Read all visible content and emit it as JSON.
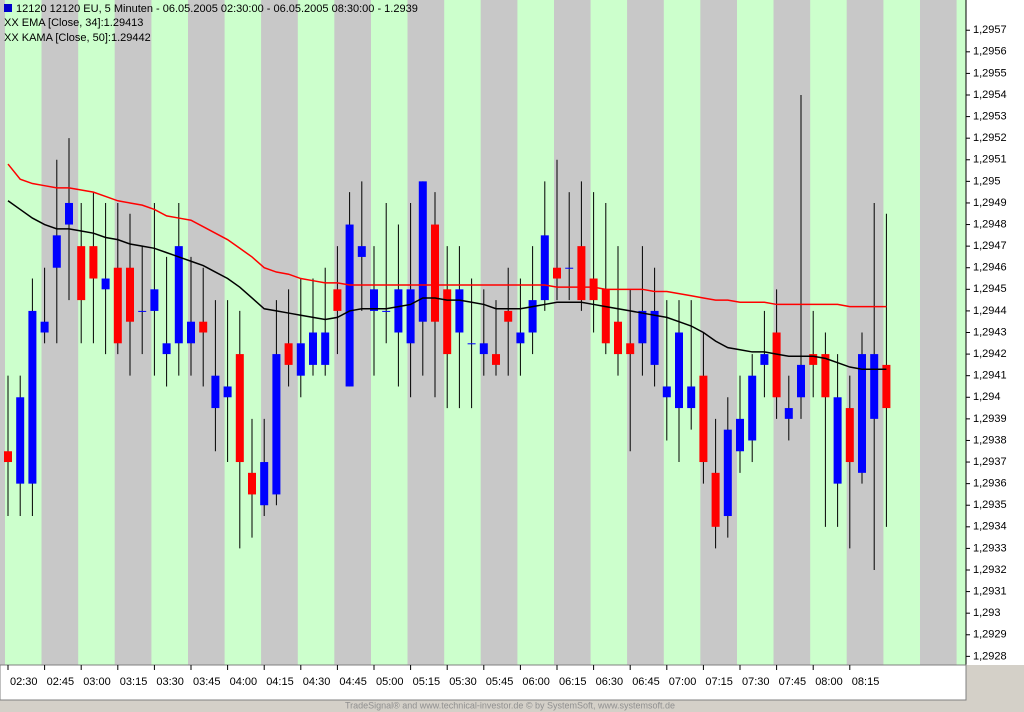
{
  "chart_data": {
    "type": "candlestick",
    "title": "12120  12120  EU, 5 Minuten - 06.05.2005 02:30:00 - 06.05.2005 08:30:00 - 1.2939",
    "footer": "TradeSignal® and www.technical-investor.de © by SystemSoft, www.systemsoft.de",
    "up_color": "#0000ff",
    "down_color": "#ff0000",
    "categories": [
      "02:30",
      null,
      null,
      "02:45",
      null,
      null,
      "03:00",
      null,
      null,
      "03:15",
      null,
      null,
      "03:30",
      null,
      null,
      "03:45",
      null,
      null,
      "04:00",
      null,
      null,
      "04:15",
      null,
      null,
      "04:30",
      null,
      null,
      "04:45",
      null,
      null,
      "05:00",
      null,
      null,
      "05:15",
      null,
      null,
      "05:30",
      null,
      null,
      "05:45",
      null,
      null,
      "06:00",
      null,
      null,
      "06:15",
      null,
      null,
      "06:30",
      null,
      null,
      "06:45",
      null,
      null,
      "07:00",
      null,
      null,
      "07:15",
      null,
      null,
      "07:30",
      null,
      null,
      "07:45",
      null,
      null,
      "08:00",
      null,
      null,
      "08:15",
      null,
      null,
      null
    ],
    "open": [
      1.29375,
      1.2936,
      1.2936,
      1.2943,
      1.2946,
      1.2948,
      1.2947,
      1.2947,
      1.2945,
      1.2946,
      1.2946,
      1.2944,
      1.2944,
      1.2942,
      1.29425,
      1.29425,
      1.29435,
      1.29395,
      1.294,
      1.2942,
      1.29365,
      1.2935,
      1.29355,
      1.29425,
      1.2941,
      1.29415,
      1.29415,
      1.2945,
      1.29405,
      1.29465,
      1.2944,
      1.2944,
      1.2943,
      1.29425,
      1.29435,
      1.2948,
      1.2945,
      1.2943,
      1.29425,
      1.2942,
      1.2942,
      1.2944,
      1.29425,
      1.2943,
      1.29445,
      1.2946,
      1.2946,
      1.2947,
      1.29455,
      1.2945,
      1.29435,
      1.29425,
      1.29425,
      1.29415,
      1.294,
      1.29395,
      1.29395,
      1.2941,
      1.29365,
      1.29345,
      1.29375,
      1.2938,
      1.29415,
      1.2943,
      1.2939,
      1.294,
      1.2942,
      1.2942,
      1.2936,
      1.29395,
      1.29365,
      1.2939,
      1.29415
    ],
    "high": [
      1.2941,
      1.2941,
      1.29455,
      1.2946,
      1.2951,
      1.2952,
      1.2949,
      1.29495,
      1.2949,
      1.2949,
      1.29485,
      1.2947,
      1.2949,
      1.29465,
      1.2949,
      1.29465,
      1.2946,
      1.29445,
      1.29445,
      1.2944,
      1.2939,
      1.2939,
      1.29445,
      1.2945,
      1.29455,
      1.29455,
      1.2946,
      1.2947,
      1.29495,
      1.295,
      1.2947,
      1.2949,
      1.2948,
      1.2949,
      1.295,
      1.29495,
      1.2947,
      1.2947,
      1.29455,
      1.2945,
      1.29445,
      1.2946,
      1.29455,
      1.2947,
      1.295,
      1.2951,
      1.29495,
      1.295,
      1.29495,
      1.2949,
      1.2947,
      1.2945,
      1.2947,
      1.2946,
      1.29445,
      1.29445,
      1.29445,
      1.2943,
      1.2939,
      1.294,
      1.2941,
      1.2942,
      1.2944,
      1.2945,
      1.2941,
      1.2954,
      1.2944,
      1.2943,
      1.2942,
      1.2941,
      1.2943,
      1.2949,
      1.29485
    ],
    "low": [
      1.29345,
      1.29345,
      1.29345,
      1.29425,
      1.29425,
      1.29445,
      1.29425,
      1.29425,
      1.2942,
      1.2942,
      1.2941,
      1.2942,
      1.2941,
      1.29405,
      1.2941,
      1.2941,
      1.29405,
      1.29375,
      1.2937,
      1.2933,
      1.29335,
      1.29345,
      1.2935,
      1.29405,
      1.294,
      1.2941,
      1.2941,
      1.2942,
      1.29405,
      1.2944,
      1.2941,
      1.29425,
      1.29405,
      1.294,
      1.2941,
      1.294,
      1.29395,
      1.29395,
      1.29395,
      1.2941,
      1.2941,
      1.2941,
      1.2941,
      1.2942,
      1.2944,
      1.29445,
      1.29445,
      1.2944,
      1.2943,
      1.2942,
      1.2941,
      1.29375,
      1.2941,
      1.29405,
      1.2938,
      1.2937,
      1.29385,
      1.2936,
      1.2933,
      1.29335,
      1.29365,
      1.2937,
      1.294,
      1.2939,
      1.2938,
      1.2939,
      1.294,
      1.2934,
      1.2934,
      1.2933,
      1.2936,
      1.2932,
      1.2934
    ],
    "close": [
      1.2937,
      1.294,
      1.2944,
      1.29435,
      1.29475,
      1.2949,
      1.29445,
      1.29455,
      1.29455,
      1.29425,
      1.29435,
      1.2944,
      1.2945,
      1.29425,
      1.2947,
      1.29435,
      1.2943,
      1.2941,
      1.29405,
      1.2937,
      1.29355,
      1.2937,
      1.2942,
      1.29415,
      1.29425,
      1.2943,
      1.2943,
      1.2944,
      1.2948,
      1.2947,
      1.2945,
      1.2944,
      1.2945,
      1.2945,
      1.295,
      1.29435,
      1.2942,
      1.2945,
      1.29425,
      1.29425,
      1.29415,
      1.29435,
      1.2943,
      1.29445,
      1.29475,
      1.29455,
      1.2946,
      1.29445,
      1.29445,
      1.29425,
      1.2942,
      1.2942,
      1.2944,
      1.2944,
      1.29405,
      1.2943,
      1.29405,
      1.2937,
      1.2934,
      1.29385,
      1.2939,
      1.2941,
      1.2942,
      1.294,
      1.29395,
      1.29415,
      1.29415,
      1.294,
      1.294,
      1.2937,
      1.2942,
      1.2942,
      1.29395
    ],
    "series": [
      {
        "name": "XX EMA [Close, 34]:1.29413",
        "color": "#000000",
        "values": [
          1.29491,
          1.29487,
          1.29483,
          1.2948,
          1.29478,
          1.29478,
          1.29477,
          1.29476,
          1.29474,
          1.29473,
          1.29471,
          1.2947,
          1.29469,
          1.29467,
          1.29465,
          1.29463,
          1.29461,
          1.29458,
          1.29455,
          1.29451,
          1.29446,
          1.29441,
          1.2944,
          1.29439,
          1.29438,
          1.29437,
          1.29436,
          1.29437,
          1.2944,
          1.29441,
          1.29441,
          1.29441,
          1.29442,
          1.29443,
          1.29446,
          1.29446,
          1.29445,
          1.29445,
          1.29444,
          1.29443,
          1.29441,
          1.29441,
          1.29441,
          1.29442,
          1.29443,
          1.29444,
          1.29444,
          1.29444,
          1.29443,
          1.29442,
          1.29441,
          1.2944,
          1.29439,
          1.29438,
          1.29437,
          1.29435,
          1.29433,
          1.2943,
          1.29426,
          1.29423,
          1.29422,
          1.29421,
          1.29421,
          1.2942,
          1.29419,
          1.29419,
          1.29419,
          1.29418,
          1.29416,
          1.29414,
          1.29413,
          1.29413,
          1.29413
        ]
      },
      {
        "name": "XX KAMA [Close, 50]:1.29442",
        "color": "#ff0000",
        "values": [
          1.29508,
          1.29501,
          1.29499,
          1.29498,
          1.29497,
          1.29497,
          1.29496,
          1.29495,
          1.29493,
          1.29491,
          1.2949,
          1.29489,
          1.29487,
          1.29484,
          1.29483,
          1.29482,
          1.29479,
          1.29476,
          1.29473,
          1.29469,
          1.29465,
          1.2946,
          1.29458,
          1.29457,
          1.29455,
          1.29454,
          1.29453,
          1.29453,
          1.29452,
          1.29452,
          1.29452,
          1.29452,
          1.29452,
          1.29452,
          1.29452,
          1.29452,
          1.29452,
          1.29452,
          1.29452,
          1.29452,
          1.29452,
          1.29452,
          1.29452,
          1.29452,
          1.29452,
          1.29451,
          1.29451,
          1.29451,
          1.29451,
          1.2945,
          1.2945,
          1.2945,
          1.2945,
          1.29449,
          1.29449,
          1.29448,
          1.29447,
          1.29446,
          1.29445,
          1.29445,
          1.29444,
          1.29444,
          1.29444,
          1.29443,
          1.29443,
          1.29443,
          1.29443,
          1.29443,
          1.29443,
          1.29442,
          1.29442,
          1.29442,
          1.29442
        ]
      }
    ],
    "ylim": [
      1.29276,
      1.29584
    ],
    "yticks": [
      {
        "value": 1.2928,
        "label": "1,2928"
      },
      {
        "value": 1.2929,
        "label": "1,2929"
      },
      {
        "value": 1.293,
        "label": "1,293"
      },
      {
        "value": 1.2931,
        "label": "1,2931"
      },
      {
        "value": 1.2932,
        "label": "1,2932"
      },
      {
        "value": 1.2933,
        "label": "1,2933"
      },
      {
        "value": 1.2934,
        "label": "1,2934"
      },
      {
        "value": 1.2935,
        "label": "1,2935"
      },
      {
        "value": 1.2936,
        "label": "1,2936"
      },
      {
        "value": 1.2937,
        "label": "1,2937"
      },
      {
        "value": 1.2938,
        "label": "1,2938"
      },
      {
        "value": 1.2939,
        "label": "1,2939"
      },
      {
        "value": 1.294,
        "label": "1,294"
      },
      {
        "value": 1.2941,
        "label": "1,2941"
      },
      {
        "value": 1.2942,
        "label": "1,2942"
      },
      {
        "value": 1.2943,
        "label": "1,2943"
      },
      {
        "value": 1.2944,
        "label": "1,2944"
      },
      {
        "value": 1.2945,
        "label": "1,2945"
      },
      {
        "value": 1.2946,
        "label": "1,2946"
      },
      {
        "value": 1.2947,
        "label": "1,2947"
      },
      {
        "value": 1.2948,
        "label": "1,2948"
      },
      {
        "value": 1.2949,
        "label": "1,2949"
      },
      {
        "value": 1.295,
        "label": "1,295"
      },
      {
        "value": 1.2951,
        "label": "1,2951"
      },
      {
        "value": 1.2952,
        "label": "1,2952"
      },
      {
        "value": 1.2953,
        "label": "1,2953"
      },
      {
        "value": 1.2954,
        "label": "1,2954"
      },
      {
        "value": 1.2955,
        "label": "1,2955"
      },
      {
        "value": 1.2956,
        "label": "1,2956"
      },
      {
        "value": 1.2957,
        "label": "1,2957"
      }
    ]
  }
}
